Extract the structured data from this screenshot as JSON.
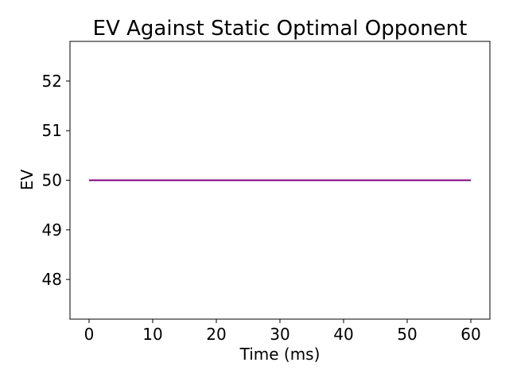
{
  "chart_data": {
    "type": "line",
    "title": "EV Against Static Optimal Opponent",
    "xlabel": "Time (ms)",
    "ylabel": "EV",
    "xlim": [
      -3,
      63
    ],
    "ylim": [
      47.2,
      52.8
    ],
    "xticks": [
      0,
      10,
      20,
      30,
      40,
      50,
      60
    ],
    "yticks": [
      48,
      49,
      50,
      51,
      52
    ],
    "grid": false,
    "series": [
      {
        "color": "#7f007f",
        "x": [
          0,
          60
        ],
        "y": [
          50,
          50
        ]
      }
    ],
    "colors": {
      "line": "#7f007f",
      "axes": "#000000",
      "background": "#ffffff"
    }
  }
}
